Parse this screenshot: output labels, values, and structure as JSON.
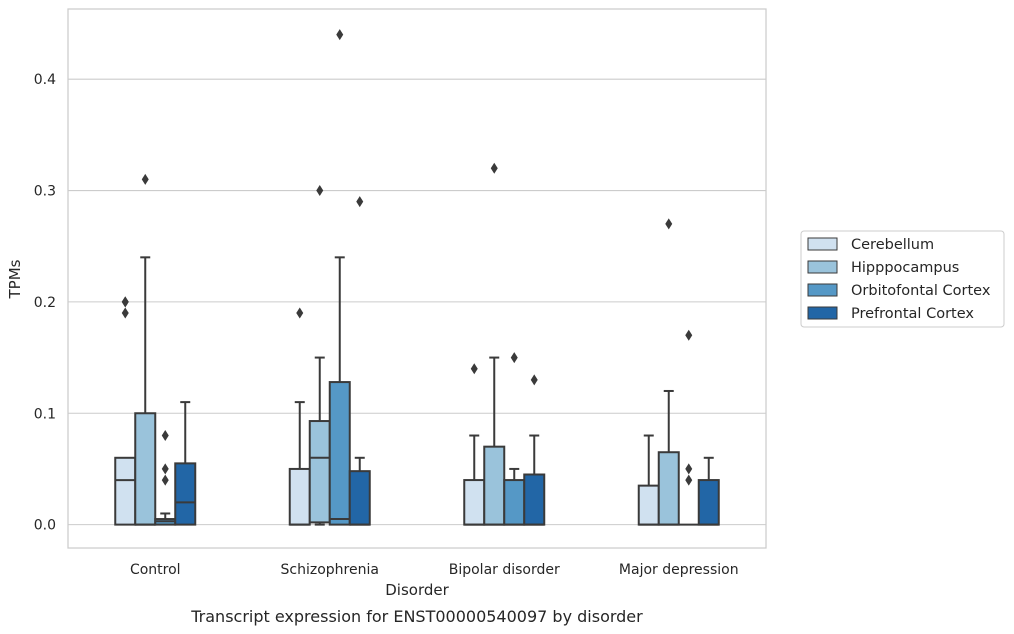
{
  "chart_data": {
    "type": "box",
    "title": "",
    "caption": "Transcript expression for ENST00000540097 by disorder",
    "xlabel": "Disorder",
    "ylabel": "TPMs",
    "ylim": [
      -0.021,
      0.463
    ],
    "yticks": [
      "0.0",
      "0.1",
      "0.2",
      "0.3",
      "0.4"
    ],
    "grid": "horizontal",
    "legend_position": "right",
    "categories": [
      "Control",
      "Schizophrenia",
      "Bipolar disorder",
      "Major depression"
    ],
    "series": [
      {
        "name": "Cerebellum",
        "color": "#d0e1f0",
        "boxes": [
          {
            "min": 0,
            "q1": 0,
            "median": 0.04,
            "q3": 0.06,
            "max": 0.06,
            "outliers": [
              0.19,
              0.2,
              0.2
            ]
          },
          {
            "min": 0,
            "q1": 0,
            "median": 0,
            "q3": 0.05,
            "max": 0.11,
            "outliers": [
              0.19
            ]
          },
          {
            "min": 0,
            "q1": 0,
            "median": 0,
            "q3": 0.04,
            "max": 0.08,
            "outliers": [
              0.14
            ]
          },
          {
            "min": 0,
            "q1": 0,
            "median": 0,
            "q3": 0.035,
            "max": 0.08,
            "outliers": []
          }
        ]
      },
      {
        "name": "Hipppocampus",
        "color": "#9ac3db",
        "boxes": [
          {
            "min": 0,
            "q1": 0,
            "median": 0,
            "q3": 0.1,
            "max": 0.24,
            "outliers": [
              0.31
            ]
          },
          {
            "min": 0,
            "q1": 0.002,
            "median": 0.06,
            "q3": 0.093,
            "max": 0.15,
            "outliers": [
              0.3
            ]
          },
          {
            "min": 0,
            "q1": 0,
            "median": 0,
            "q3": 0.07,
            "max": 0.15,
            "outliers": [
              0.32
            ]
          },
          {
            "min": 0,
            "q1": 0,
            "median": 0,
            "q3": 0.065,
            "max": 0.12,
            "outliers": [
              0.27
            ]
          }
        ]
      },
      {
        "name": "Orbitofontal Cortex",
        "color": "#5598c6",
        "boxes": [
          {
            "min": 0,
            "q1": 0,
            "median": 0.003,
            "q3": 0.005,
            "max": 0.01,
            "outliers": [
              0.04,
              0.05,
              0.08
            ]
          },
          {
            "min": 0,
            "q1": 0,
            "median": 0.005,
            "q3": 0.128,
            "max": 0.24,
            "outliers": [
              0.44
            ]
          },
          {
            "min": 0,
            "q1": 0,
            "median": 0,
            "q3": 0.04,
            "max": 0.05,
            "outliers": [
              0.15
            ]
          },
          {
            "min": 0,
            "q1": 0,
            "median": 0,
            "q3": 0,
            "max": 0,
            "outliers": [
              0.04,
              0.05,
              0.17
            ]
          }
        ]
      },
      {
        "name": "Prefrontal Cortex",
        "color": "#2266a6",
        "boxes": [
          {
            "min": 0,
            "q1": 0,
            "median": 0.02,
            "q3": 0.055,
            "max": 0.11,
            "outliers": []
          },
          {
            "min": 0,
            "q1": 0,
            "median": 0,
            "q3": 0.048,
            "max": 0.06,
            "outliers": [
              0.29
            ]
          },
          {
            "min": 0,
            "q1": 0,
            "median": 0,
            "q3": 0.045,
            "max": 0.08,
            "outliers": [
              0.13
            ]
          },
          {
            "min": 0,
            "q1": 0,
            "median": 0,
            "q3": 0.04,
            "max": 0.06,
            "outliers": []
          }
        ]
      }
    ]
  }
}
